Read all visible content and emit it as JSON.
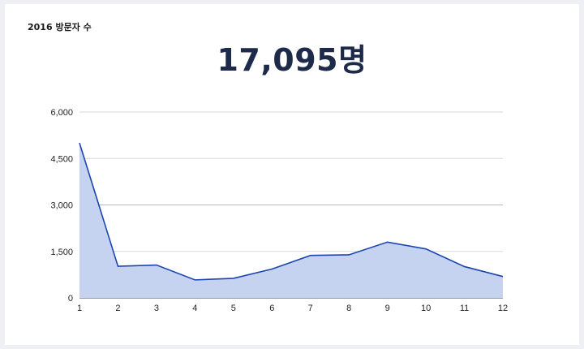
{
  "card": {
    "title": "2016 방문자 수",
    "metric": "17,095명"
  },
  "chart_data": {
    "type": "area",
    "title": "",
    "xlabel": "",
    "ylabel": "",
    "x": [
      1,
      2,
      3,
      4,
      5,
      6,
      7,
      8,
      9,
      10,
      11,
      12
    ],
    "series": [
      {
        "values": [
          5000,
          1020,
          1060,
          580,
          630,
          930,
          1370,
          1390,
          1800,
          1580,
          1010,
          690
        ]
      }
    ],
    "ylim": [
      0,
      6000
    ],
    "yticks": [
      "0",
      "1,500",
      "3,000",
      "4,500",
      "6,000"
    ],
    "xticks": [
      "1",
      "2",
      "3",
      "4",
      "5",
      "6",
      "7",
      "8",
      "9",
      "10",
      "11",
      "12"
    ],
    "grid": true,
    "colors": {
      "line": "#1a45b0",
      "fill": "#c5d3f0",
      "grid": "#d9d9d9",
      "grid_mid": "#b8b8b8",
      "axis": "#333333"
    }
  }
}
